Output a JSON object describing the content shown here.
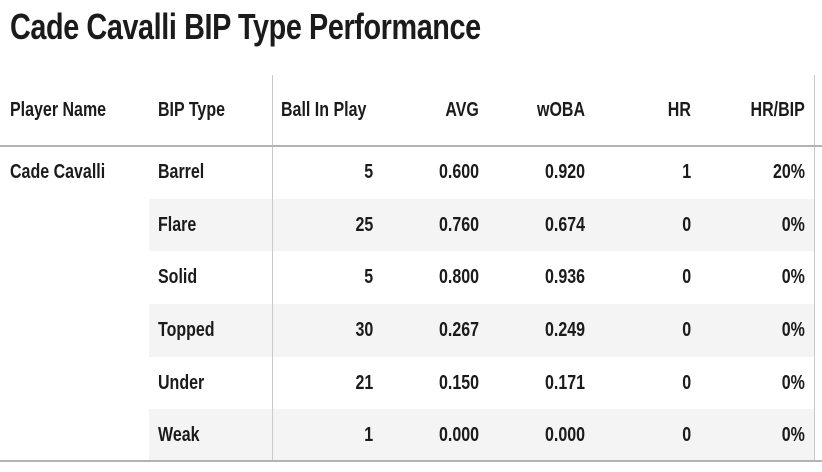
{
  "title": "Cade Cavalli BIP Type Performance",
  "colors": {
    "text": "#1b1b1b",
    "stripe": "#f4f4f4",
    "rule": "#b3b3b3",
    "divider": "#c9c9c9",
    "background": "#ffffff"
  },
  "chart_data": {
    "type": "table",
    "title": "Cade Cavalli BIP Type Performance",
    "columns": [
      "Player Name",
      "BIP Type",
      "Ball In Play",
      "AVG",
      "wOBA",
      "HR",
      "HR/BIP"
    ],
    "rows": [
      {
        "player": "Cade Cavalli",
        "bip_type": "Barrel",
        "ball_in_play": "5",
        "avg": "0.600",
        "woba": "0.920",
        "hr": "1",
        "hr_bip": "20%"
      },
      {
        "player": "",
        "bip_type": "Flare",
        "ball_in_play": "25",
        "avg": "0.760",
        "woba": "0.674",
        "hr": "0",
        "hr_bip": "0%"
      },
      {
        "player": "",
        "bip_type": "Solid",
        "ball_in_play": "5",
        "avg": "0.800",
        "woba": "0.936",
        "hr": "0",
        "hr_bip": "0%"
      },
      {
        "player": "",
        "bip_type": "Topped",
        "ball_in_play": "30",
        "avg": "0.267",
        "woba": "0.249",
        "hr": "0",
        "hr_bip": "0%"
      },
      {
        "player": "",
        "bip_type": "Under",
        "ball_in_play": "21",
        "avg": "0.150",
        "woba": "0.171",
        "hr": "0",
        "hr_bip": "0%"
      },
      {
        "player": "",
        "bip_type": "Weak",
        "ball_in_play": "1",
        "avg": "0.000",
        "woba": "0.000",
        "hr": "0",
        "hr_bip": "0%"
      }
    ],
    "layout": {
      "striped_rows": [
        1,
        3,
        5
      ],
      "stripe_excludes_first_column": true,
      "numeric_columns_right_aligned": true
    }
  }
}
